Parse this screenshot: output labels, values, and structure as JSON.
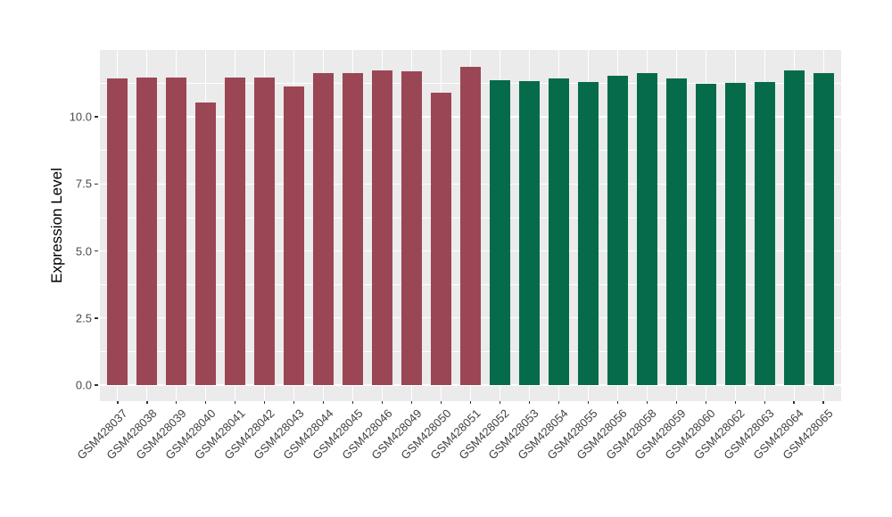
{
  "chart_data": {
    "type": "bar",
    "title": "",
    "xlabel": "",
    "ylabel": "Expression Level",
    "y_ticks": [
      0,
      2.5,
      5,
      7.5,
      10
    ],
    "y_tick_labels": [
      "0.0",
      "2.5",
      "5.0",
      "7.5",
      "10.0"
    ],
    "y_minor_gridlines": [
      1.25,
      3.75,
      6.25,
      8.75,
      11.25
    ],
    "ylim": [
      -0.6,
      12.5
    ],
    "legend": "none",
    "panel_background": "#EBEBEB",
    "gridline_color": "#FFFFFF",
    "groups": {
      "maroon": "#9B4655",
      "green": "#066B4A"
    },
    "bars": [
      {
        "label": "GSM428037",
        "value": 11.42,
        "group": "maroon"
      },
      {
        "label": "GSM428038",
        "value": 11.47,
        "group": "maroon"
      },
      {
        "label": "GSM428039",
        "value": 11.48,
        "group": "maroon"
      },
      {
        "label": "GSM428040",
        "value": 10.53,
        "group": "maroon"
      },
      {
        "label": "GSM428041",
        "value": 11.46,
        "group": "maroon"
      },
      {
        "label": "GSM428042",
        "value": 11.46,
        "group": "maroon"
      },
      {
        "label": "GSM428043",
        "value": 11.13,
        "group": "maroon"
      },
      {
        "label": "GSM428044",
        "value": 11.64,
        "group": "maroon"
      },
      {
        "label": "GSM428045",
        "value": 11.62,
        "group": "maroon"
      },
      {
        "label": "GSM428046",
        "value": 11.75,
        "group": "maroon"
      },
      {
        "label": "GSM428049",
        "value": 11.71,
        "group": "maroon"
      },
      {
        "label": "GSM428050",
        "value": 10.89,
        "group": "maroon"
      },
      {
        "label": "GSM428051",
        "value": 11.88,
        "group": "maroon"
      },
      {
        "label": "GSM428052",
        "value": 11.37,
        "group": "green"
      },
      {
        "label": "GSM428053",
        "value": 11.33,
        "group": "green"
      },
      {
        "label": "GSM428054",
        "value": 11.44,
        "group": "green"
      },
      {
        "label": "GSM428055",
        "value": 11.3,
        "group": "green"
      },
      {
        "label": "GSM428056",
        "value": 11.53,
        "group": "green"
      },
      {
        "label": "GSM428058",
        "value": 11.64,
        "group": "green"
      },
      {
        "label": "GSM428059",
        "value": 11.45,
        "group": "green"
      },
      {
        "label": "GSM428060",
        "value": 11.23,
        "group": "green"
      },
      {
        "label": "GSM428062",
        "value": 11.26,
        "group": "green"
      },
      {
        "label": "GSM428063",
        "value": 11.3,
        "group": "green"
      },
      {
        "label": "GSM428064",
        "value": 11.75,
        "group": "green"
      },
      {
        "label": "GSM428065",
        "value": 11.62,
        "group": "green"
      }
    ]
  }
}
